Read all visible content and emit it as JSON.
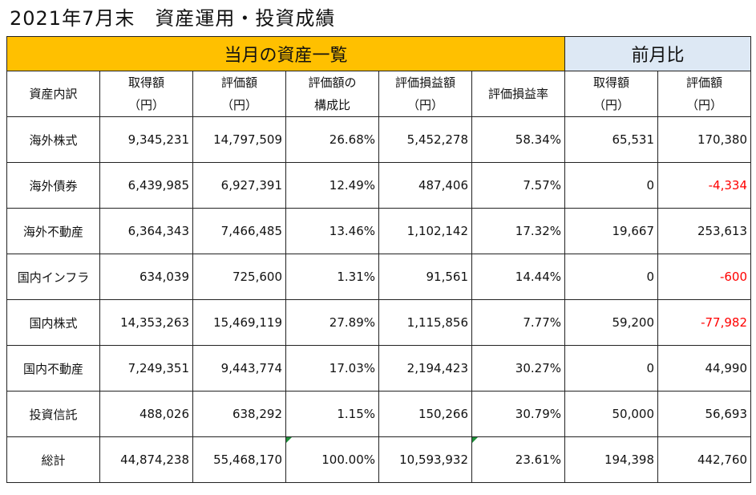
{
  "title": "2021年7月末　資産運用・投資成績",
  "bands": {
    "current": "当月の資産一覧",
    "previous": "前月比"
  },
  "headers": [
    [
      "資産内訳"
    ],
    [
      "取得額",
      "（円）"
    ],
    [
      "評価額",
      "（円）"
    ],
    [
      "評価額の",
      "構成比"
    ],
    [
      "評価損益額",
      "（円）"
    ],
    [
      "評価損益率"
    ],
    [
      "取得額",
      "（円）"
    ],
    [
      "評価額",
      "（円）"
    ]
  ],
  "rows": [
    {
      "name": "海外株式",
      "cost": "9,345,231",
      "value": "14,797,509",
      "ratio": "26.68%",
      "gain": "5,452,278",
      "gain_rate": "58.34%",
      "mom_cost": "65,531",
      "mom_value": "170,380",
      "mom_value_negative": false
    },
    {
      "name": "海外債券",
      "cost": "6,439,985",
      "value": "6,927,391",
      "ratio": "12.49%",
      "gain": "487,406",
      "gain_rate": "7.57%",
      "mom_cost": "0",
      "mom_value": "-4,334",
      "mom_value_negative": true
    },
    {
      "name": "海外不動産",
      "cost": "6,364,343",
      "value": "7,466,485",
      "ratio": "13.46%",
      "gain": "1,102,142",
      "gain_rate": "17.32%",
      "mom_cost": "19,667",
      "mom_value": "253,613",
      "mom_value_negative": false
    },
    {
      "name": "国内インフラ",
      "cost": "634,039",
      "value": "725,600",
      "ratio": "1.31%",
      "gain": "91,561",
      "gain_rate": "14.44%",
      "mom_cost": "0",
      "mom_value": "-600",
      "mom_value_negative": true
    },
    {
      "name": "国内株式",
      "cost": "14,353,263",
      "value": "15,469,119",
      "ratio": "27.89%",
      "gain": "1,115,856",
      "gain_rate": "7.77%",
      "mom_cost": "59,200",
      "mom_value": "-77,982",
      "mom_value_negative": true
    },
    {
      "name": "国内不動産",
      "cost": "7,249,351",
      "value": "9,443,774",
      "ratio": "17.03%",
      "gain": "2,194,423",
      "gain_rate": "30.27%",
      "mom_cost": "0",
      "mom_value": "44,990",
      "mom_value_negative": false
    },
    {
      "name": "投資信託",
      "cost": "488,026",
      "value": "638,292",
      "ratio": "1.15%",
      "gain": "150,266",
      "gain_rate": "30.79%",
      "mom_cost": "50,000",
      "mom_value": "56,693",
      "mom_value_negative": false
    },
    {
      "name": "総計",
      "cost": "44,874,238",
      "value": "55,468,170",
      "ratio": "100.00%",
      "gain": "10,593,932",
      "gain_rate": "23.61%",
      "mom_cost": "194,398",
      "mom_value": "442,760",
      "mom_value_negative": false
    }
  ],
  "colors": {
    "current_band": "#ffc000",
    "previous_band": "#dde8f4",
    "negative_text": "#ff0000",
    "comment_marker": "#1f8f3a"
  }
}
